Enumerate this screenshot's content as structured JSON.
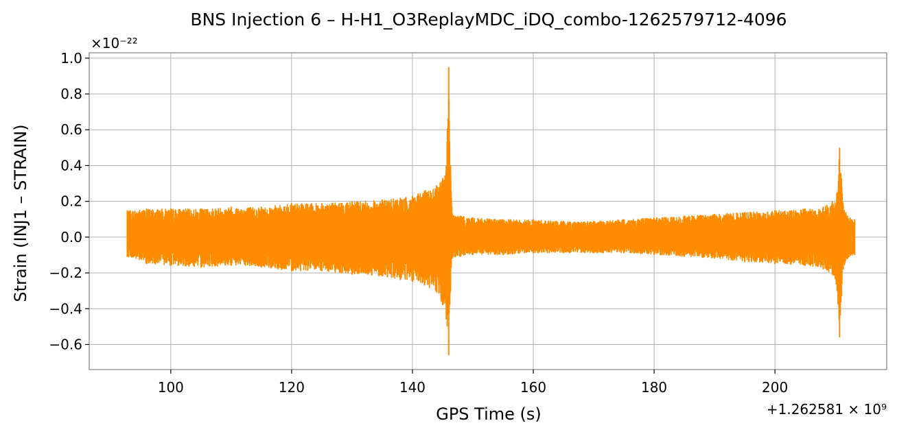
{
  "chart_data": {
    "type": "line",
    "title": "BNS Injection 6 – H-H1_O3ReplayMDC_iDQ_combo-1262579712-4096",
    "xlabel": "GPS Time (s)",
    "ylabel": "Strain (INJ1 – STRAIN)",
    "x_offset_text": "+1.262581 × 10⁹",
    "y_scale_text": "×10⁻²²",
    "xlim": [
      86.5,
      218.5
    ],
    "ylim": [
      -0.74,
      1.03
    ],
    "x_ticks": [
      100,
      120,
      140,
      160,
      180,
      200
    ],
    "x_tick_labels": [
      "100",
      "120",
      "140",
      "160",
      "180",
      "200"
    ],
    "y_ticks": [
      -0.6,
      -0.4,
      -0.2,
      0.0,
      0.2,
      0.4,
      0.6,
      0.8,
      1.0
    ],
    "y_tick_labels": [
      "−0.6",
      "−0.4",
      "−0.2",
      "0.0",
      "0.2",
      "0.4",
      "0.6",
      "0.8",
      "1.0"
    ],
    "grid": true,
    "series": [
      {
        "color": "#ff8c00",
        "envelope": {
          "x": [
            92.8,
            96,
            100,
            105,
            110,
            115,
            120,
            125,
            130,
            135,
            138,
            140,
            142,
            144,
            145,
            145.6,
            146.0,
            146.3,
            146.6,
            148,
            150,
            155,
            160,
            165,
            170,
            175,
            180,
            185,
            190,
            195,
            200,
            205,
            208,
            209.5,
            210.3,
            210.7,
            211.0,
            211.3,
            212,
            213.2
          ],
          "upper": [
            0.15,
            0.16,
            0.16,
            0.16,
            0.17,
            0.17,
            0.19,
            0.19,
            0.2,
            0.21,
            0.22,
            0.23,
            0.26,
            0.29,
            0.33,
            0.4,
            0.95,
            0.4,
            0.13,
            0.12,
            0.11,
            0.1,
            0.1,
            0.09,
            0.09,
            0.1,
            0.11,
            0.12,
            0.13,
            0.14,
            0.15,
            0.16,
            0.17,
            0.2,
            0.25,
            0.5,
            0.33,
            0.18,
            0.12,
            0.1
          ],
          "lower": [
            -0.11,
            -0.15,
            -0.16,
            -0.17,
            -0.16,
            -0.17,
            -0.19,
            -0.19,
            -0.21,
            -0.22,
            -0.24,
            -0.25,
            -0.27,
            -0.31,
            -0.38,
            -0.46,
            -0.66,
            -0.3,
            -0.12,
            -0.11,
            -0.1,
            -0.1,
            -0.09,
            -0.09,
            -0.09,
            -0.09,
            -0.1,
            -0.11,
            -0.12,
            -0.14,
            -0.15,
            -0.16,
            -0.18,
            -0.21,
            -0.3,
            -0.56,
            -0.33,
            -0.18,
            -0.12,
            -0.1
          ]
        }
      }
    ]
  }
}
